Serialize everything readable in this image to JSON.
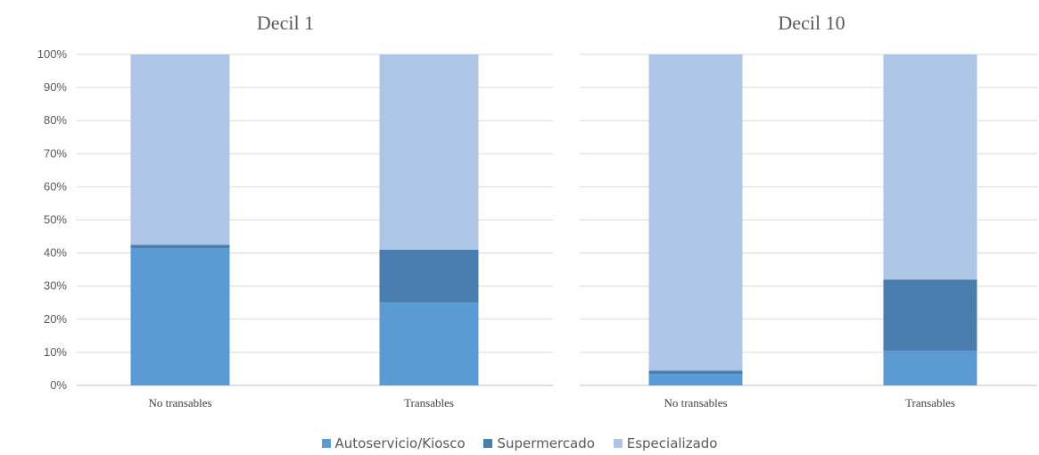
{
  "chart_data": [
    {
      "type": "bar",
      "stacked": true,
      "title": "Decil 1",
      "categories": [
        "No transables",
        "Transables"
      ],
      "series": [
        {
          "name": "Autoservicio/Kiosco",
          "values": [
            41.5,
            25
          ]
        },
        {
          "name": "Supermercado",
          "values": [
            1,
            16
          ]
        },
        {
          "name": "Especializado",
          "values": [
            57.5,
            59
          ]
        }
      ],
      "ylim": [
        0,
        100
      ],
      "yticks": [
        "0%",
        "10%",
        "20%",
        "30%",
        "40%",
        "50%",
        "60%",
        "70%",
        "80%",
        "90%",
        "100%"
      ],
      "grid": true
    },
    {
      "type": "bar",
      "stacked": true,
      "title": "Decil 10",
      "categories": [
        "No transables",
        "Transables"
      ],
      "series": [
        {
          "name": "Autoservicio/Kiosco",
          "values": [
            3.5,
            10.5
          ]
        },
        {
          "name": "Supermercado",
          "values": [
            1,
            21.5
          ]
        },
        {
          "name": "Especializado",
          "values": [
            95.5,
            68
          ]
        }
      ],
      "ylim": [
        0,
        100
      ],
      "grid": true
    }
  ],
  "legend": {
    "placement": "bottom",
    "items": [
      {
        "label": "Autoservicio/Kiosco",
        "color": "#5b9bd5"
      },
      {
        "label": "Supermercado",
        "color": "#4a7eae"
      },
      {
        "label": "Especializado",
        "color": "#adc6e5"
      }
    ]
  }
}
